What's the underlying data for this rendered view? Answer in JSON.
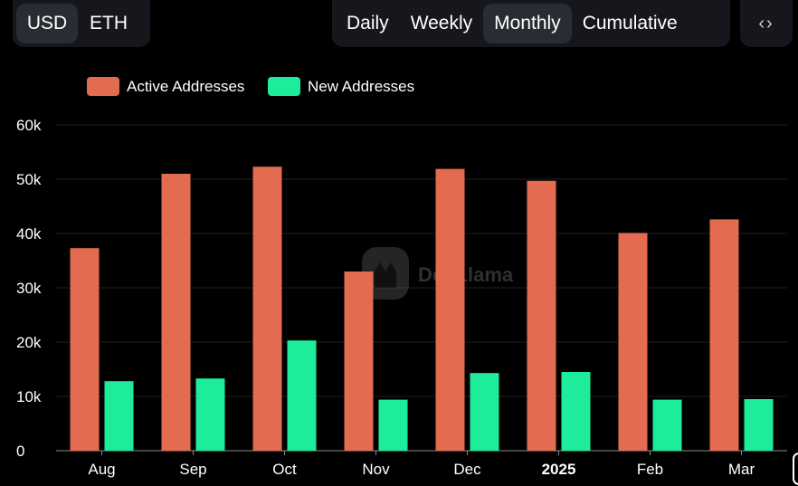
{
  "currency_toggle": {
    "options": [
      "USD",
      "ETH"
    ],
    "selected": "USD"
  },
  "period_toggle": {
    "options": [
      "Daily",
      "Weekly",
      "Monthly",
      "Cumulative"
    ],
    "selected": "Monthly"
  },
  "embed_icon": "code-brackets-icon",
  "watermark": {
    "text": "DefiLlama",
    "icon": "llama-logo-icon"
  },
  "colors": {
    "active": "#e36b4f",
    "new": "#1ded9a",
    "grid": "#1f1f1f",
    "background": "#000000"
  },
  "chart_data": {
    "type": "bar",
    "categories": [
      "Aug",
      "Sep",
      "Oct",
      "Nov",
      "Dec",
      "2025",
      "Feb",
      "Mar"
    ],
    "bold_categories": [
      "2025"
    ],
    "series": [
      {
        "name": "Active Addresses",
        "color": "#e36b4f",
        "values": [
          37300,
          51000,
          52300,
          33000,
          51900,
          49700,
          40100,
          42600
        ]
      },
      {
        "name": "New Addresses",
        "color": "#1ded9a",
        "values": [
          12800,
          13300,
          20300,
          9400,
          14300,
          14500,
          9400,
          9500
        ]
      }
    ],
    "ylim": [
      0,
      60000
    ],
    "yticks": [
      "0",
      "10k",
      "20k",
      "30k",
      "40k",
      "50k",
      "60k"
    ],
    "ytick_values": [
      0,
      10000,
      20000,
      30000,
      40000,
      50000,
      60000
    ],
    "grid": true,
    "legend": "top-left"
  }
}
